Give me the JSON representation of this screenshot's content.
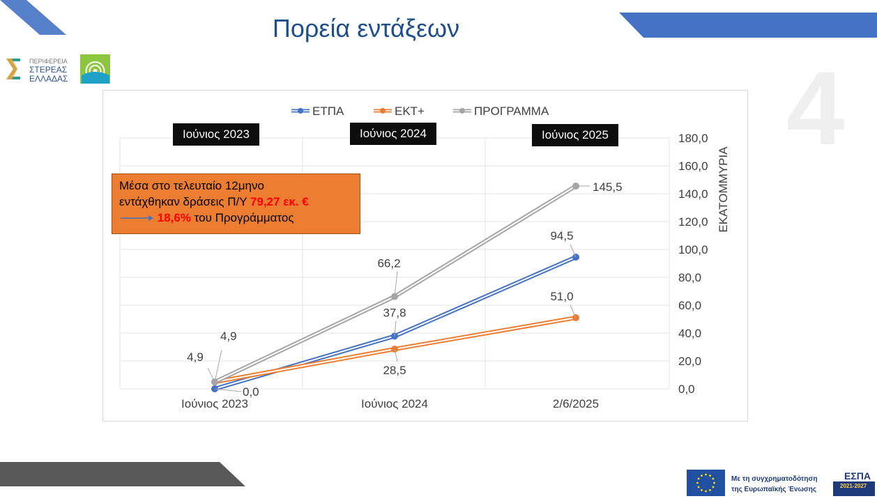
{
  "slide": {
    "title": "Πορεία εντάξεων"
  },
  "logo_left": {
    "line1": "ΠΕΡΙΦΕΡΕΙΑ",
    "line2": "ΣΤΕΡΕΑΣ",
    "line3": "ΕΛΛΑΔΑΣ"
  },
  "period_labels": [
    "Ιούνιος 2023",
    "Ιούνιος 2024",
    "Ιούνιος 2025"
  ],
  "callout": {
    "line1": "Μέσα στο τελευταίο 12μηνο",
    "line2_prefix": "εντάχθηκαν  δράσεις Π/Υ ",
    "line2_highlight": "79,27 εκ. €",
    "line3_highlight": "18,6%",
    "line3_suffix": " του Προγράμματος"
  },
  "footer": {
    "eu_line1": "Με τη συγχρηματοδότηση",
    "eu_line2": "της Ευρωπαϊκής Ένωσης",
    "espa_title": "ΕΣΠΑ",
    "espa_years": "2021-2027"
  },
  "colors": {
    "etpa": "#4472c4",
    "ekt": "#ed7d31",
    "programma": "#a5a5a5",
    "title": "#1f4e8c"
  },
  "chart_data": {
    "type": "line",
    "categories": [
      "Ιούνιος 2023",
      "Ιούνιος 2024",
      "2/6/2025"
    ],
    "series": [
      {
        "name": "ΕΤΠΑ",
        "values": [
          0.0,
          37.8,
          94.5
        ],
        "labels": [
          "0,0",
          "37,8",
          "94,5"
        ]
      },
      {
        "name": "ΕΚΤ+",
        "values": [
          4.9,
          28.5,
          51.0
        ],
        "labels": [
          "4,9",
          "28,5",
          "51,0"
        ]
      },
      {
        "name": "ΠΡΟΓΡΑΜΜΑ",
        "values": [
          4.9,
          66.2,
          145.5
        ],
        "labels": [
          "4,9",
          "66,2",
          "145,5"
        ]
      }
    ],
    "ylabel": "ΕΚΑΤΟΜΜΥΡΙΑ",
    "ylim": [
      0,
      180
    ],
    "yticks": [
      "0,0",
      "20,0",
      "40,0",
      "60,0",
      "80,0",
      "100,0",
      "120,0",
      "140,0",
      "160,0",
      "180,0"
    ],
    "y_axis_side": "right",
    "legend": "top",
    "grid": true
  }
}
